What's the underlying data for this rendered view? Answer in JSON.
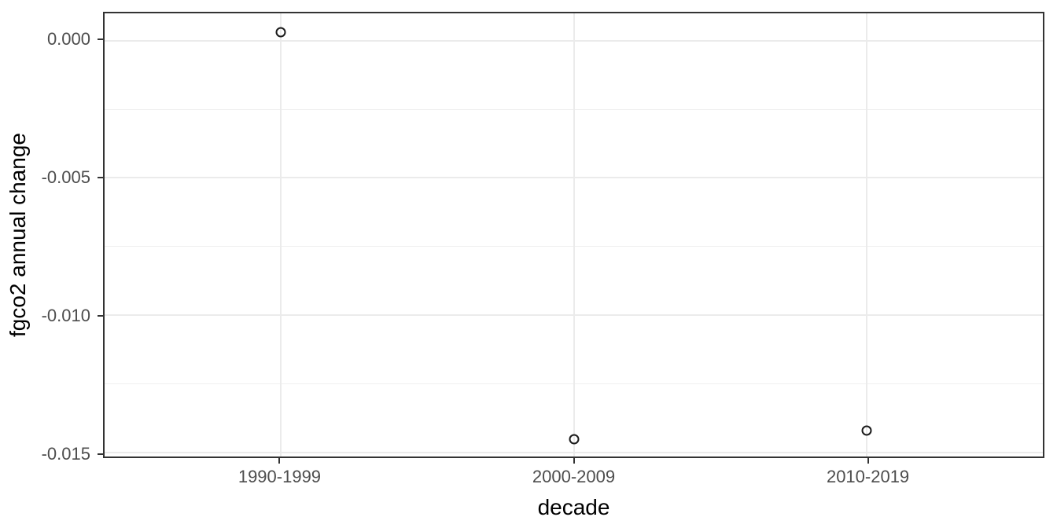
{
  "chart_data": {
    "type": "scatter",
    "title": "",
    "xlabel": "decade",
    "ylabel": "fgco2 annual change",
    "categories": [
      "1990-1999",
      "2000-2009",
      "2010-2019"
    ],
    "values": [
      0.0003,
      -0.0145,
      -0.0142
    ],
    "ylim": [
      -0.01514,
      0.00099
    ],
    "yticks": [
      {
        "value": 0.0,
        "label": "0.000"
      },
      {
        "value": -0.005,
        "label": "-0.005"
      },
      {
        "value": -0.01,
        "label": "-0.010"
      },
      {
        "value": -0.015,
        "label": "-0.015"
      }
    ],
    "yminor": [
      -0.0025,
      -0.0075,
      -0.0125
    ],
    "grid": true,
    "legend": "none",
    "point_style": "open-circle",
    "colors": {
      "point_stroke": "#1a1a1a",
      "grid_major": "#ebebeb",
      "grid_minor": "#efefef",
      "panel_border": "#333333",
      "tick_label": "#4d4d4d",
      "axis_title": "#000000",
      "background": "#ffffff"
    }
  }
}
